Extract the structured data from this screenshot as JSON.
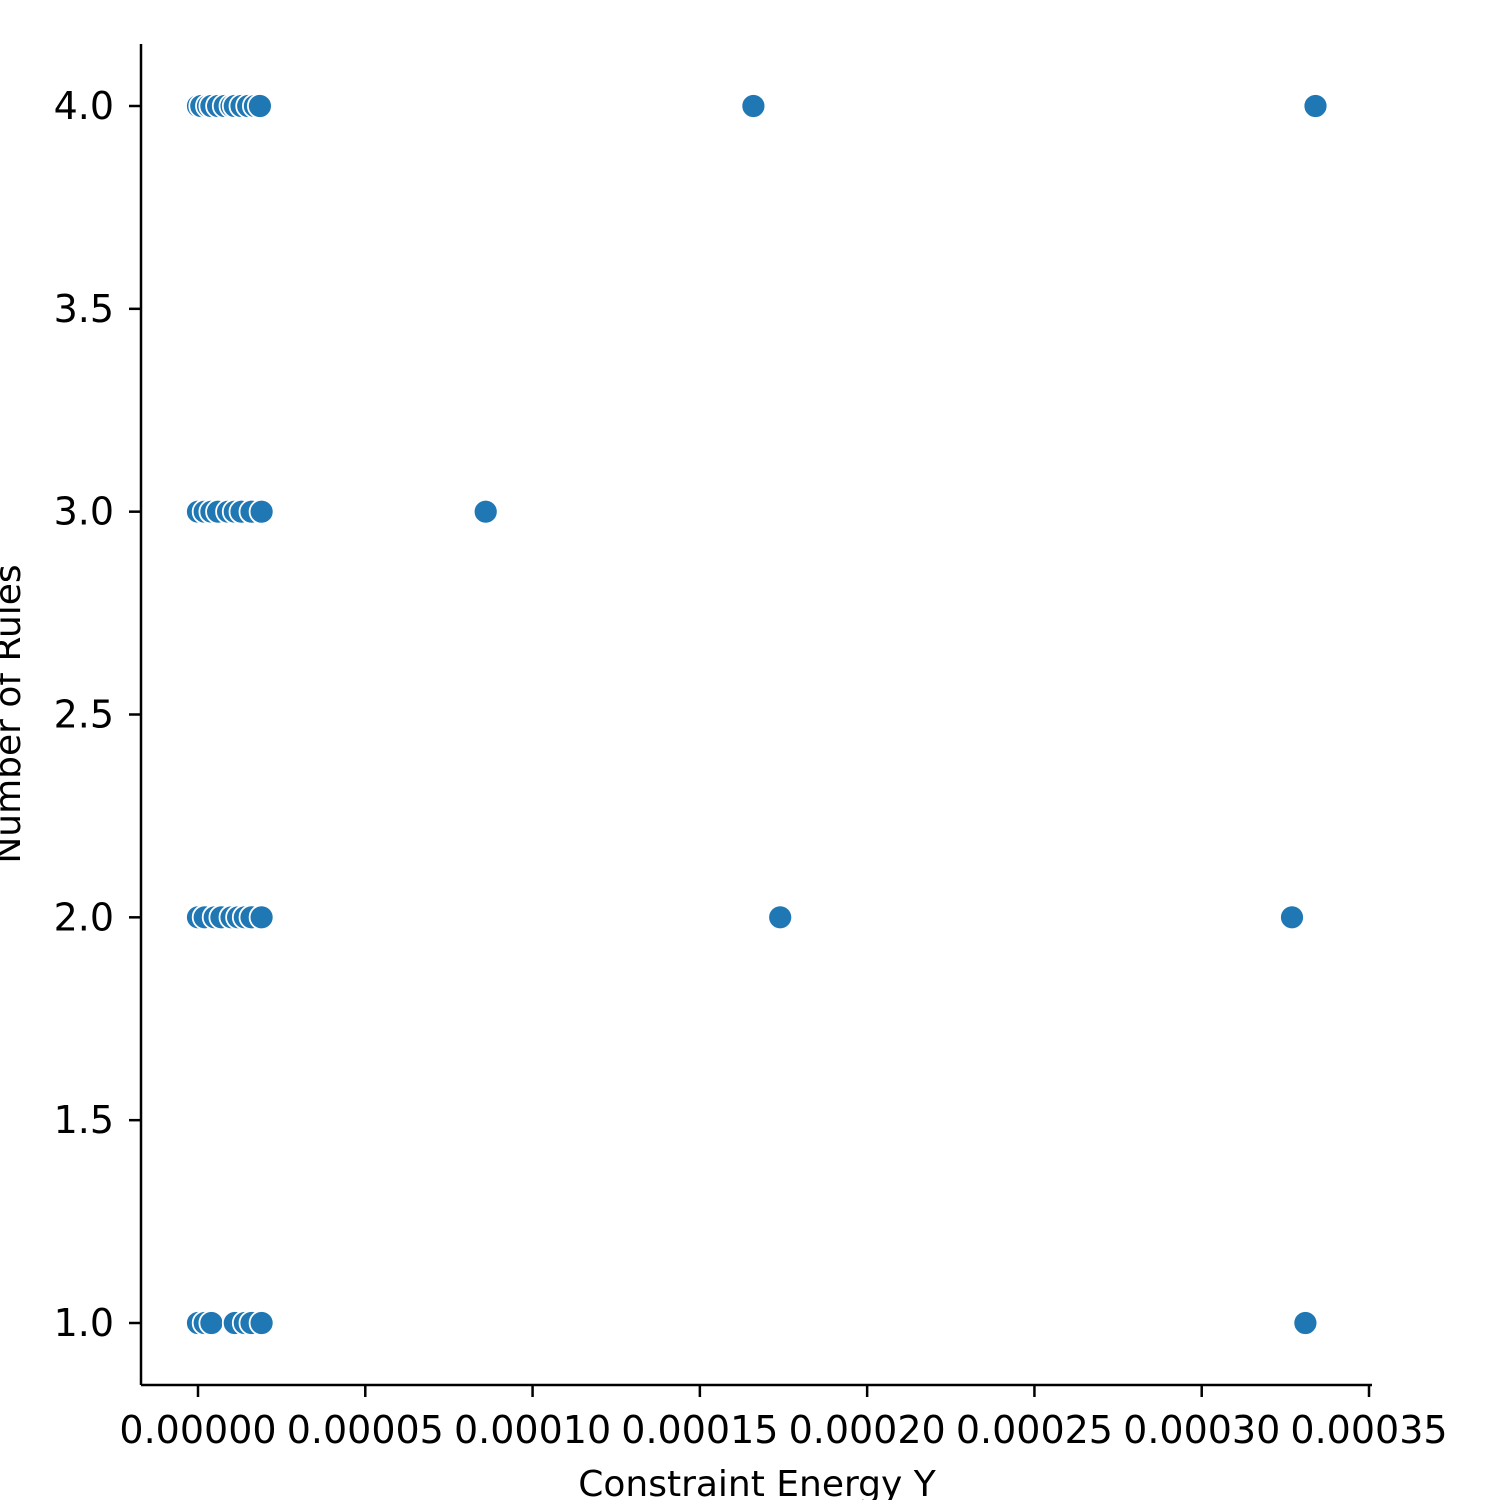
{
  "chart_data": {
    "type": "scatter",
    "title": "",
    "xlabel": "Constraint Energy Y",
    "ylabel": "Number of Rules",
    "xlim": [
      -1.7e-05,
      0.00035
    ],
    "ylim": [
      0.85,
      4.15
    ],
    "x_ticks": [
      "0.00000",
      "0.00005",
      "0.00010",
      "0.00015",
      "0.00020",
      "0.00025",
      "0.00030",
      "0.00035"
    ],
    "y_ticks": [
      "1.0",
      "1.5",
      "2.0",
      "2.5",
      "3.0",
      "3.5",
      "4.0"
    ],
    "grid": false,
    "marker_color": "#1f77b4",
    "marker_edge_color": "#ffffff",
    "series": [
      {
        "points": [
          {
            "x": 0.0,
            "y": 4
          },
          {
            "x": 1e-06,
            "y": 4
          },
          {
            "x": 3e-06,
            "y": 4
          },
          {
            "x": 4e-06,
            "y": 4
          },
          {
            "x": 6e-06,
            "y": 4
          },
          {
            "x": 8e-06,
            "y": 4
          },
          {
            "x": 1e-05,
            "y": 4
          },
          {
            "x": 1.1e-05,
            "y": 4
          },
          {
            "x": 1.3e-05,
            "y": 4
          },
          {
            "x": 1.5e-05,
            "y": 4
          },
          {
            "x": 1.7e-05,
            "y": 4
          },
          {
            "x": 1.85e-05,
            "y": 4
          },
          {
            "x": 0.000166,
            "y": 4
          },
          {
            "x": 0.000334,
            "y": 4
          },
          {
            "x": 0.0,
            "y": 3
          },
          {
            "x": 2e-06,
            "y": 3
          },
          {
            "x": 4e-06,
            "y": 3
          },
          {
            "x": 6e-06,
            "y": 3
          },
          {
            "x": 9e-06,
            "y": 3
          },
          {
            "x": 1.1e-05,
            "y": 3
          },
          {
            "x": 1.3e-05,
            "y": 3
          },
          {
            "x": 1.6e-05,
            "y": 3
          },
          {
            "x": 1.9e-05,
            "y": 3
          },
          {
            "x": 8.6e-05,
            "y": 3
          },
          {
            "x": 0.0,
            "y": 2
          },
          {
            "x": 2e-06,
            "y": 2
          },
          {
            "x": 5e-06,
            "y": 2
          },
          {
            "x": 7e-06,
            "y": 2
          },
          {
            "x": 1e-05,
            "y": 2
          },
          {
            "x": 1.2e-05,
            "y": 2
          },
          {
            "x": 1.4e-05,
            "y": 2
          },
          {
            "x": 1.6e-05,
            "y": 2
          },
          {
            "x": 1.9e-05,
            "y": 2
          },
          {
            "x": 0.000174,
            "y": 2
          },
          {
            "x": 0.000327,
            "y": 2
          },
          {
            "x": 0.0,
            "y": 1
          },
          {
            "x": 2e-06,
            "y": 1
          },
          {
            "x": 4e-06,
            "y": 1
          },
          {
            "x": 1.1e-05,
            "y": 1
          },
          {
            "x": 1.4e-05,
            "y": 1
          },
          {
            "x": 1.6e-05,
            "y": 1
          },
          {
            "x": 1.9e-05,
            "y": 1
          },
          {
            "x": 0.000331,
            "y": 1
          }
        ]
      }
    ]
  }
}
